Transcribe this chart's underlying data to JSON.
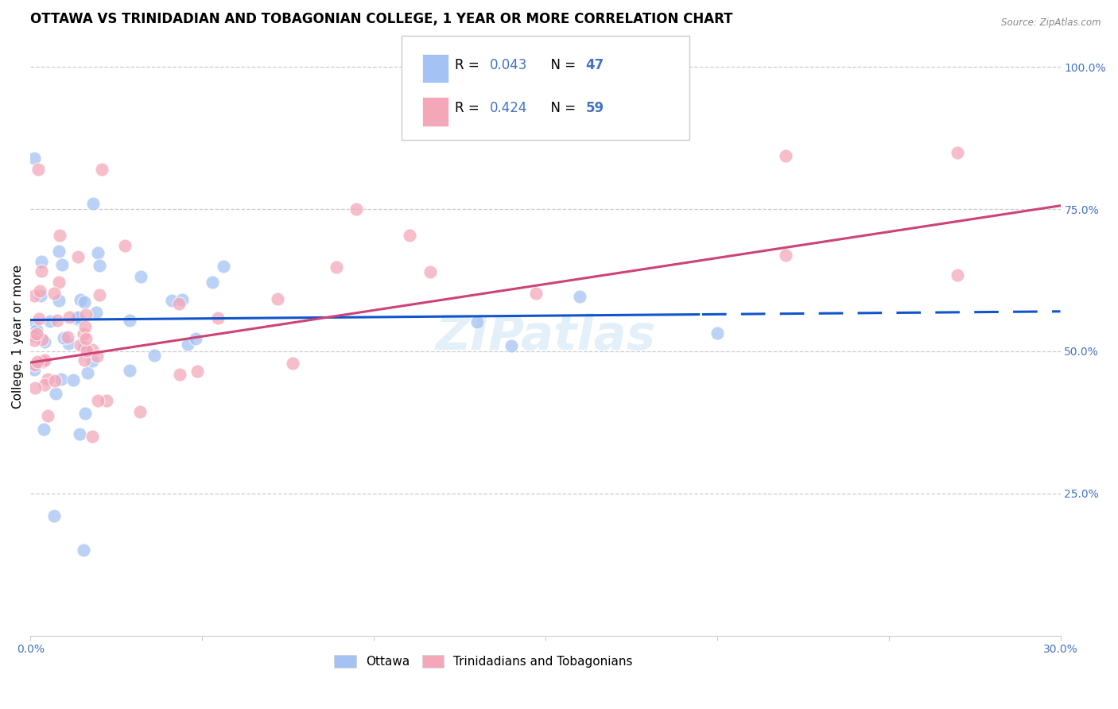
{
  "title": "OTTAWA VS TRINIDADIAN AND TOBAGONIAN COLLEGE, 1 YEAR OR MORE CORRELATION CHART",
  "source": "Source: ZipAtlas.com",
  "ylabel": "College, 1 year or more",
  "xlim": [
    0.0,
    0.3
  ],
  "ylim": [
    0.0,
    1.05
  ],
  "blue_color": "#a4c2f4",
  "pink_color": "#f4a7b9",
  "blue_line_color": "#1155cc",
  "pink_line_color": "#cc4477",
  "watermark": "ZIPatlas",
  "R_blue": 0.043,
  "N_blue": 47,
  "R_pink": 0.424,
  "N_pink": 59,
  "background_color": "#ffffff",
  "grid_color": "#cccccc",
  "title_fontsize": 12,
  "axis_fontsize": 11,
  "tick_fontsize": 10,
  "legend_fontsize": 12,
  "accent_color": "#4472c4"
}
